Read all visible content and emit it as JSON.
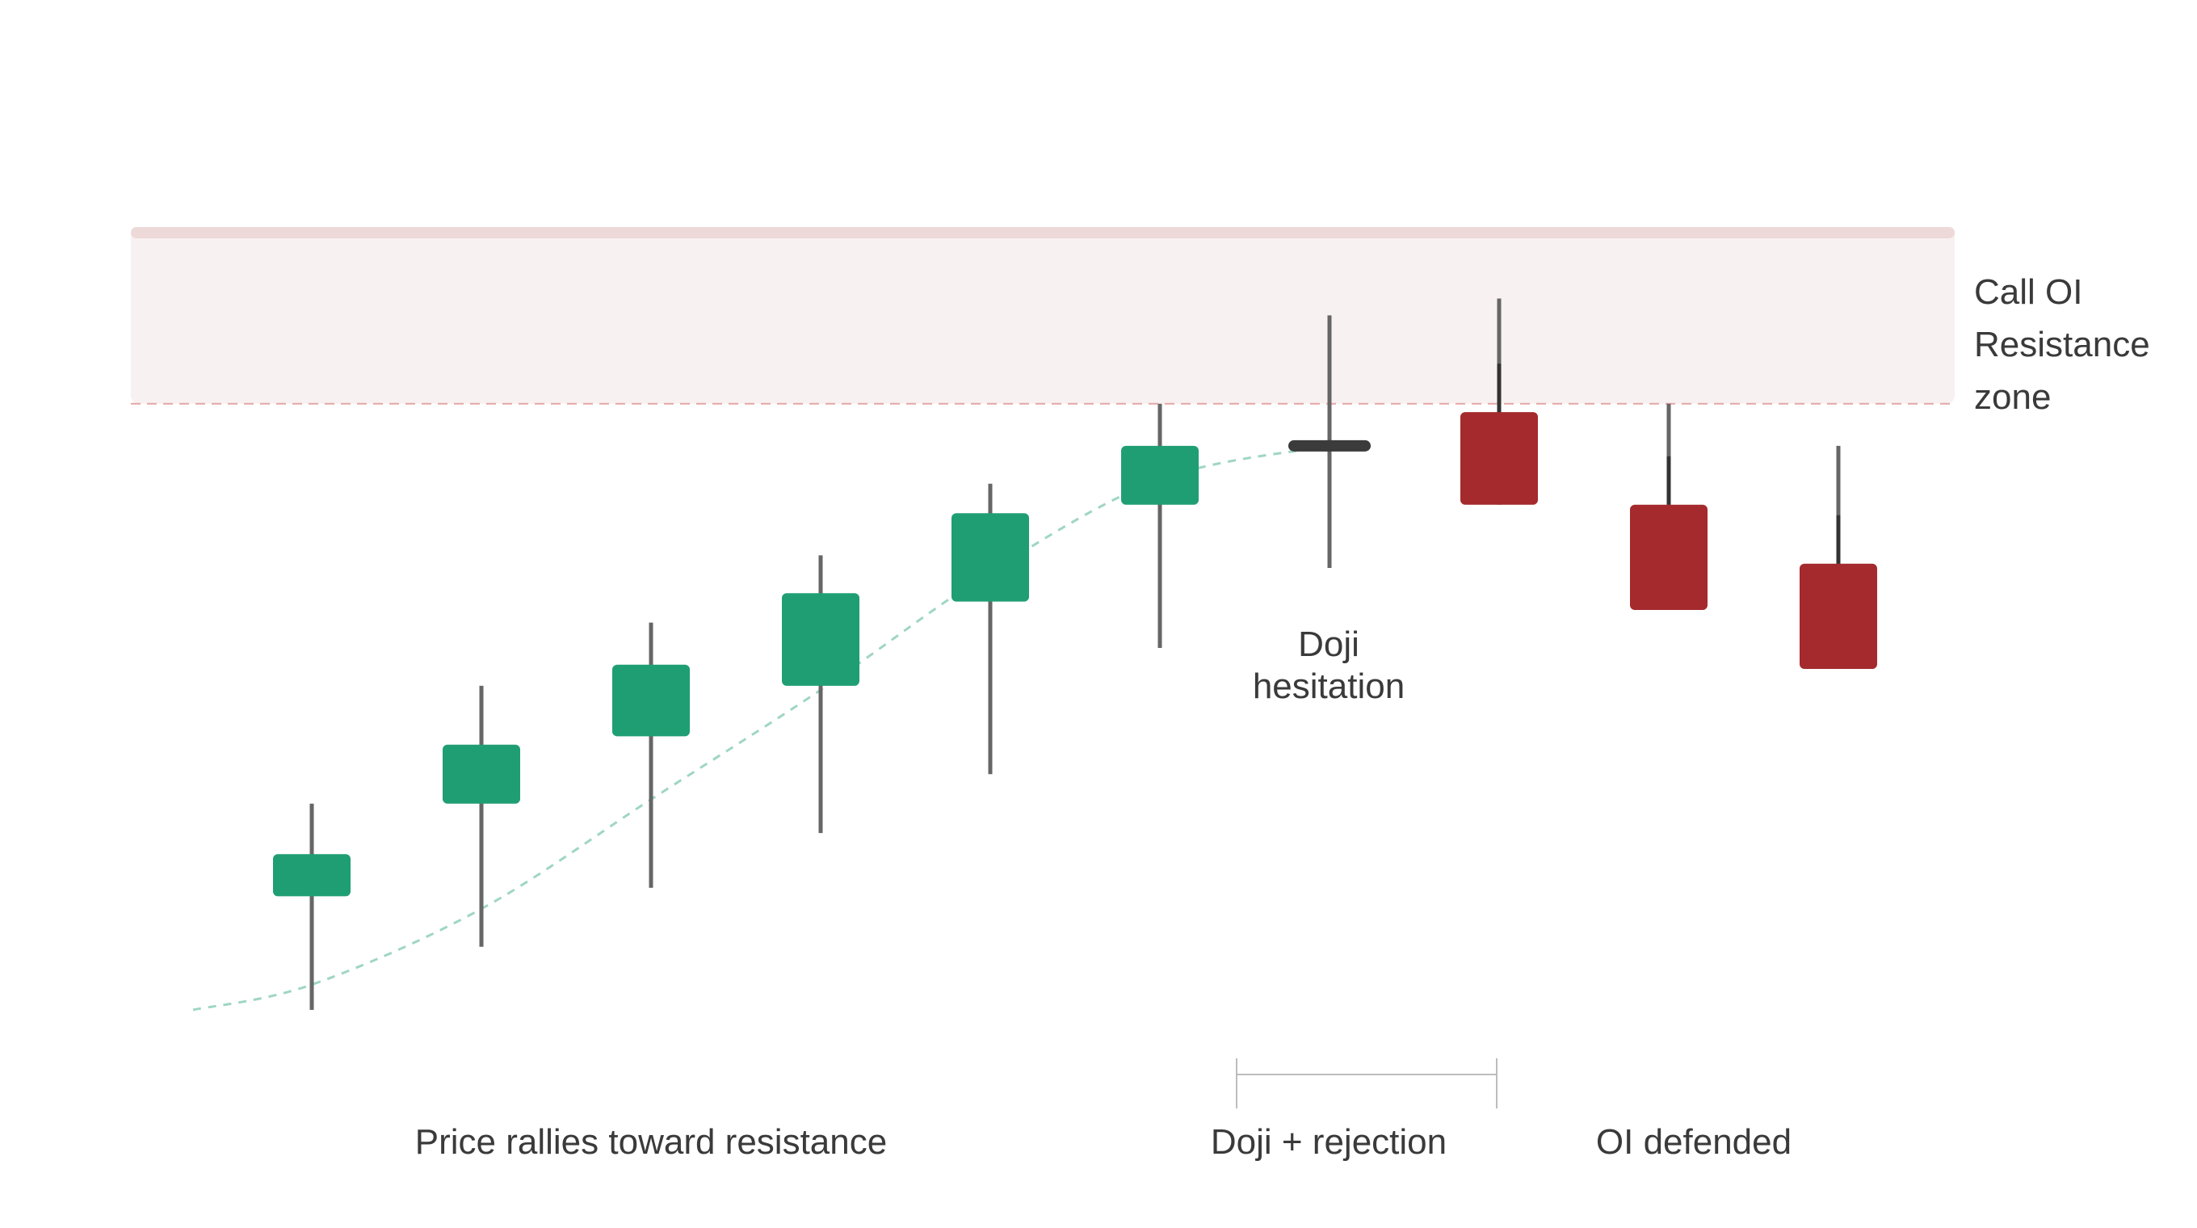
{
  "chart_data": {
    "type": "candlestick",
    "title": "",
    "xlabel": "",
    "ylabel": "",
    "ylim": [
      0,
      100
    ],
    "grid": false,
    "colors": {
      "bullish": "#1f9e74",
      "bearish": "#a42a2d",
      "doji": "#3b3b3b",
      "wick": "#666666",
      "wick_in_zone": "#5a5a5a",
      "zone_fill": "#f8f1f1",
      "zone_top": "#eed9d9",
      "zone_line": "#e3a5a7",
      "trend_line": "#9fd6c3",
      "bracket": "#bdbdbd"
    },
    "candles": [
      {
        "index": 1,
        "open": 13.5,
        "close": 18.5,
        "high": 24.5,
        "low": 0.0,
        "kind": "bullish"
      },
      {
        "index": 2,
        "open": 24.5,
        "close": 31.5,
        "high": 38.5,
        "low": 7.5,
        "kind": "bullish"
      },
      {
        "index": 3,
        "open": 32.5,
        "close": 41.0,
        "high": 46.0,
        "low": 14.5,
        "kind": "bullish"
      },
      {
        "index": 4,
        "open": 38.5,
        "close": 49.5,
        "high": 54.0,
        "low": 21.0,
        "kind": "bullish"
      },
      {
        "index": 5,
        "open": 48.5,
        "close": 59.0,
        "high": 62.5,
        "low": 28.0,
        "kind": "bullish"
      },
      {
        "index": 6,
        "open": 60.0,
        "close": 67.0,
        "high": 72.0,
        "low": 43.0,
        "kind": "bullish"
      },
      {
        "index": 7,
        "open": 67.0,
        "close": 67.0,
        "high": 82.5,
        "low": 52.5,
        "kind": "doji"
      },
      {
        "index": 8,
        "open": 71.0,
        "close": 60.0,
        "high": 84.5,
        "low": 60.0,
        "kind": "bearish"
      },
      {
        "index": 9,
        "open": 60.0,
        "close": 47.5,
        "high": 72.0,
        "low": 47.5,
        "kind": "bearish"
      },
      {
        "index": 10,
        "open": 53.0,
        "close": 40.5,
        "high": 67.0,
        "low": 40.5,
        "kind": "bearish"
      }
    ],
    "trend_line": {
      "x": [
        0.3,
        1.0,
        2.0,
        3.0,
        4.0,
        5.0,
        6.0,
        7.0
      ],
      "y": [
        0.0,
        3.0,
        12.0,
        25.0,
        38.0,
        52.0,
        63.0,
        67.0
      ]
    },
    "resistance_zone": {
      "low": 72.0,
      "high": 93.0
    },
    "x_domain": [
      0,
      11
    ]
  },
  "labels": {
    "zone": [
      "Call OI",
      "Resistance",
      "zone"
    ],
    "doji": [
      "Doji",
      "hesitation"
    ],
    "rally": "Price rallies toward resistance",
    "rejection": "Doji + rejection",
    "defended": "OI defended"
  }
}
